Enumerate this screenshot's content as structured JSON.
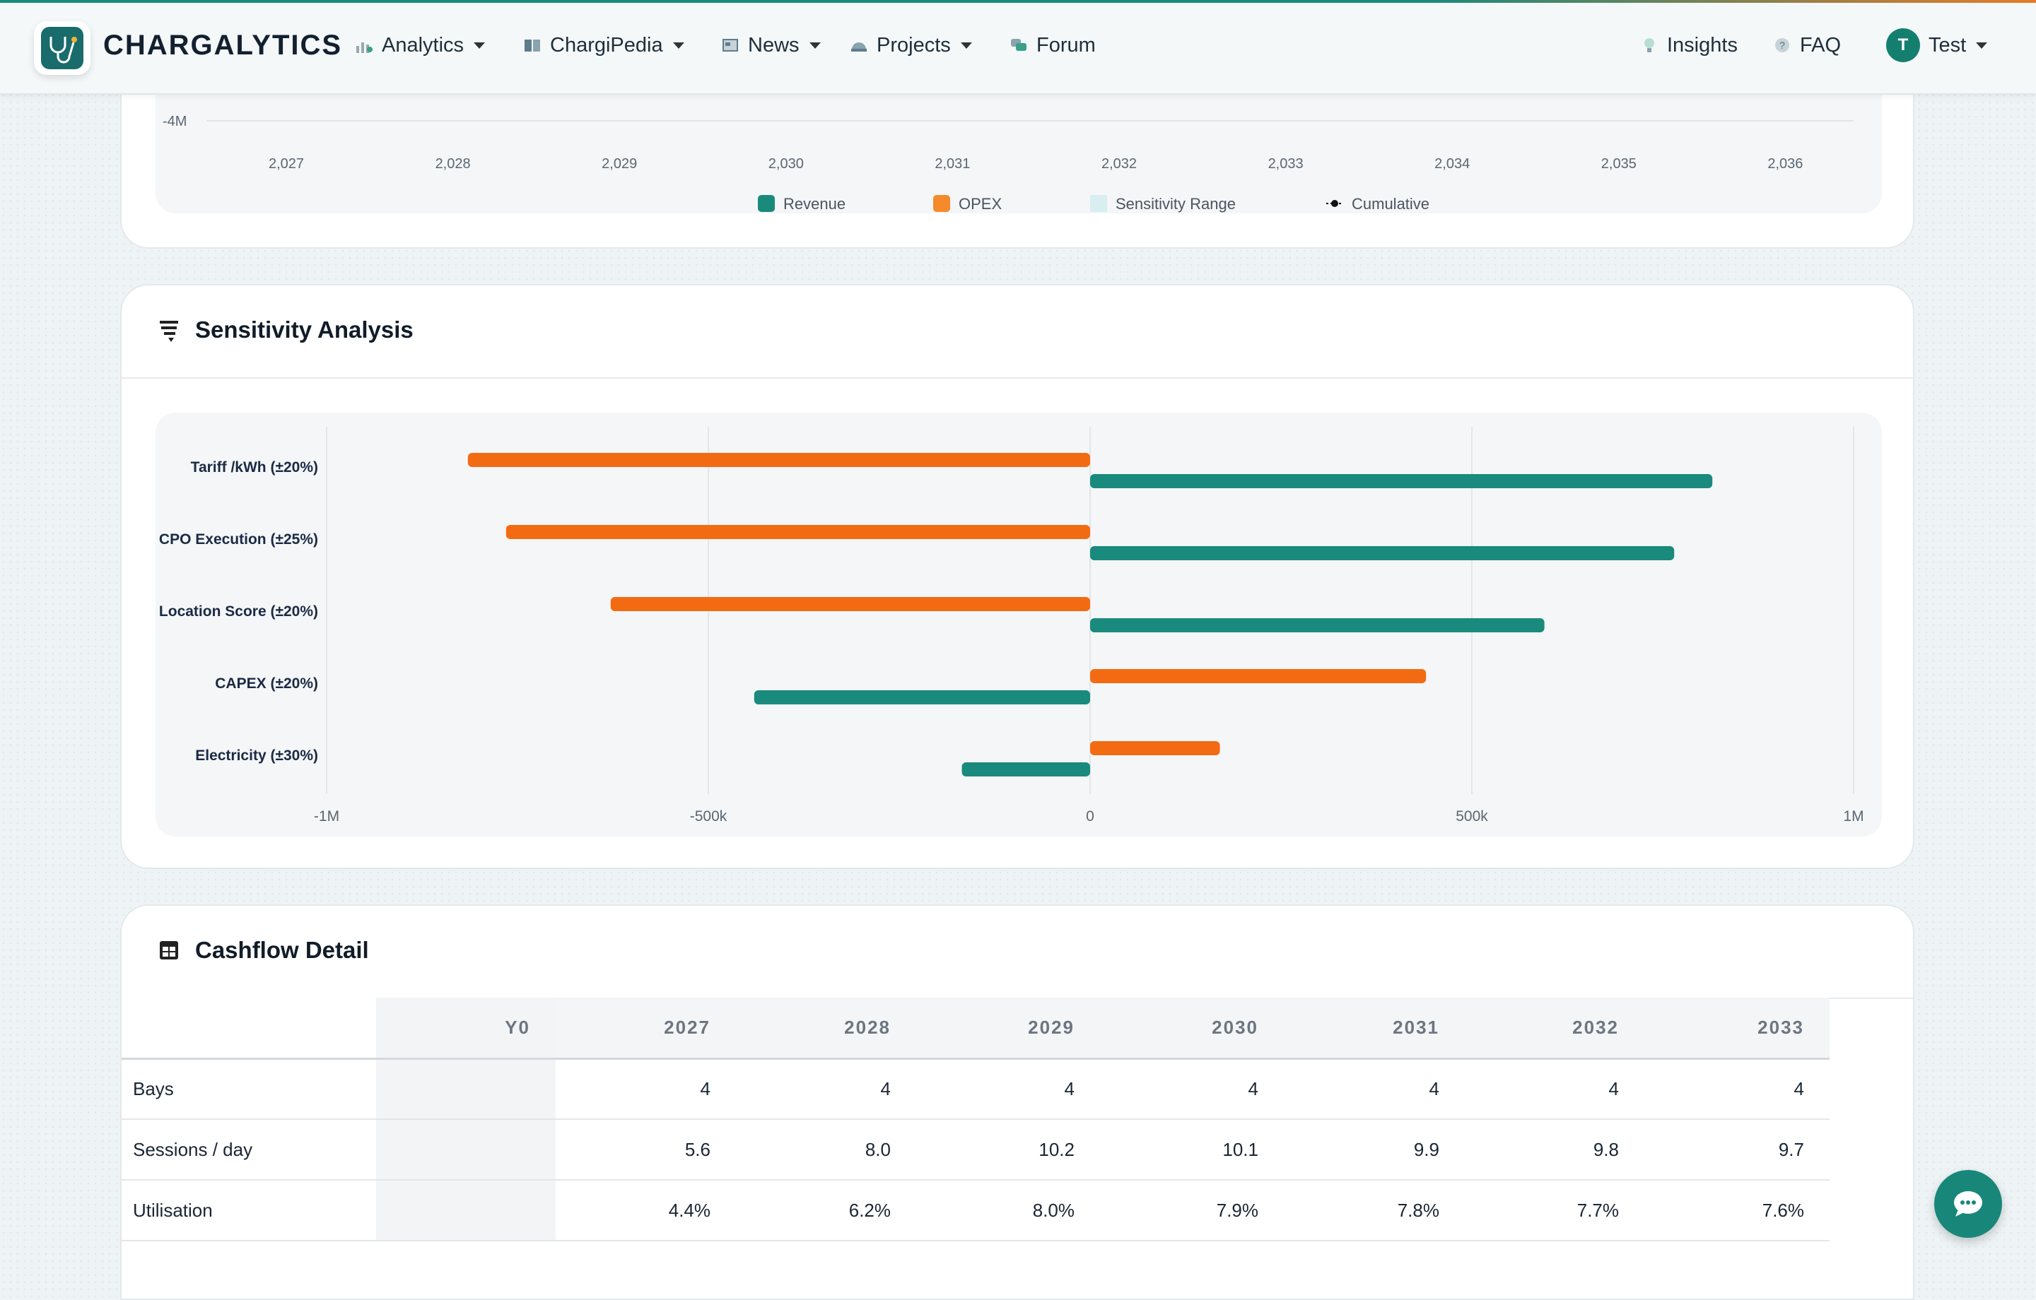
{
  "nav": {
    "brand": "CHARGALYTICS",
    "items": [
      {
        "label": "Analytics",
        "icon": "analytics-icon",
        "dropdown": true
      },
      {
        "label": "ChargiPedia",
        "icon": "book-icon",
        "dropdown": true
      },
      {
        "label": "News",
        "icon": "newspaper-icon",
        "dropdown": true
      },
      {
        "label": "Projects",
        "icon": "helmet-icon",
        "dropdown": true
      },
      {
        "label": "Forum",
        "icon": "chat-bubbles-icon",
        "dropdown": false
      }
    ],
    "right": {
      "insights": "Insights",
      "faq": "FAQ",
      "user_initial": "T",
      "user_name": "Test"
    }
  },
  "cashflow_chart": {
    "y_tick_label": "-4M",
    "x_ticks": [
      "2,027",
      "2,028",
      "2,029",
      "2,030",
      "2,031",
      "2,032",
      "2,033",
      "2,034",
      "2,035",
      "2,036"
    ],
    "legend": [
      {
        "label": "Revenue",
        "color": "#198a7c",
        "kind": "square"
      },
      {
        "label": "OPEX",
        "color": "#f58a2a",
        "kind": "square"
      },
      {
        "label": "Sensitivity Range",
        "color": "#d9eef0",
        "kind": "band"
      },
      {
        "label": "Cumulative",
        "color": "#111111",
        "kind": "line-dot"
      }
    ]
  },
  "sensitivity": {
    "title": "Sensitivity Analysis",
    "chart_data": {
      "type": "bar",
      "orientation": "horizontal",
      "categories": [
        "Tariff /kWh (±20%)",
        "CPO Execution (±25%)",
        "Location Score (±20%)",
        "CAPEX (±20%)",
        "Electricity (±30%)"
      ],
      "series": [
        {
          "color": "#f26b12",
          "values": [
            -815000,
            -765000,
            -628000,
            440000,
            170000
          ]
        },
        {
          "color": "#198a7c",
          "values": [
            815000,
            765000,
            595000,
            -440000,
            -168000
          ]
        }
      ],
      "xlim": [
        -1000000,
        1000000
      ],
      "x_ticks": [
        -1000000,
        -500000,
        0,
        500000,
        1000000
      ],
      "x_tick_labels": [
        "-1M",
        "-500k",
        "0",
        "500k",
        "1M"
      ],
      "grid": true
    }
  },
  "cashflow_detail": {
    "title": "Cashflow Detail",
    "columns": [
      "",
      "Y0",
      "2027",
      "2028",
      "2029",
      "2030",
      "2031",
      "2032",
      "2033"
    ],
    "rows": [
      {
        "label": "Bays",
        "values": [
          "",
          "4",
          "4",
          "4",
          "4",
          "4",
          "4",
          "4"
        ]
      },
      {
        "label": "Sessions / day",
        "values": [
          "",
          "5.6",
          "8.0",
          "10.2",
          "10.1",
          "9.9",
          "9.8",
          "9.7"
        ]
      },
      {
        "label": "Utilisation",
        "values": [
          "",
          "4.4%",
          "6.2%",
          "8.0%",
          "7.9%",
          "7.8%",
          "7.7%",
          "7.6%"
        ]
      }
    ]
  }
}
